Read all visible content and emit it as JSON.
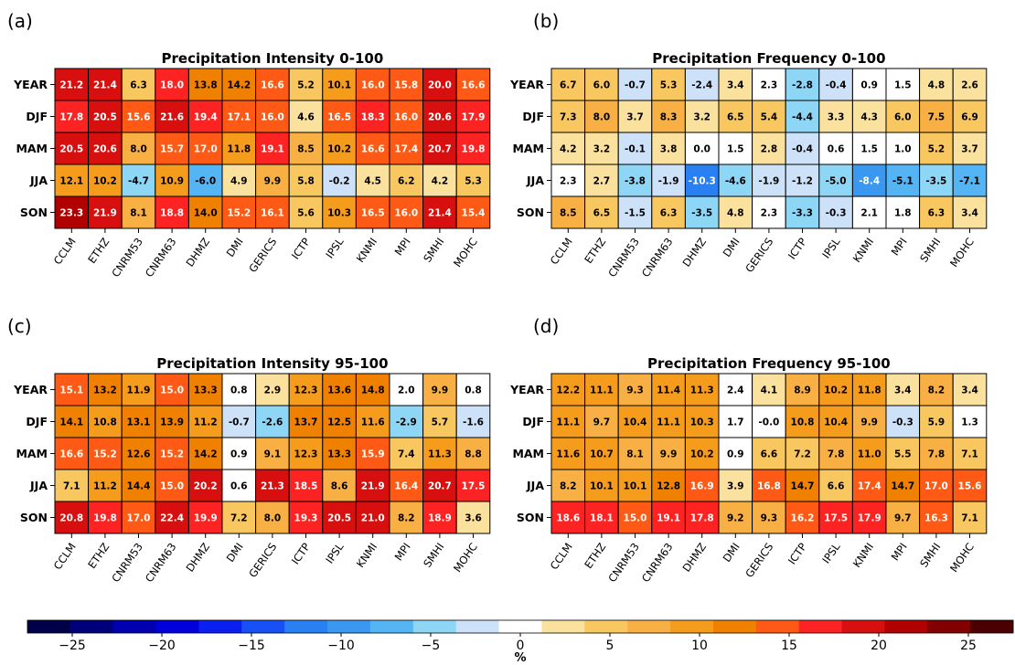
{
  "chart_data": [
    {
      "type": "heatmap",
      "panel_label": "(a)",
      "title": "Precipitation Intensity 0-100",
      "rows": [
        "YEAR",
        "DJF",
        "MAM",
        "JJA",
        "SON"
      ],
      "columns": [
        "CCLM",
        "ETHZ",
        "CNRM53",
        "CNRM63",
        "DHMZ",
        "DMI",
        "GERICS",
        "ICTP",
        "IPSL",
        "KNMI",
        "MPI",
        "SMHI",
        "MOHC"
      ],
      "values": [
        [
          21.2,
          21.4,
          6.3,
          18.0,
          13.8,
          14.2,
          16.6,
          5.2,
          10.1,
          16.0,
          15.8,
          20.0,
          16.6
        ],
        [
          17.8,
          20.5,
          15.6,
          21.6,
          19.4,
          17.1,
          16.0,
          4.6,
          16.5,
          18.3,
          16.0,
          20.6,
          17.9
        ],
        [
          20.5,
          20.6,
          8.0,
          15.7,
          17.0,
          11.8,
          19.1,
          8.5,
          10.2,
          16.6,
          17.4,
          20.7,
          19.8
        ],
        [
          12.1,
          10.2,
          -4.7,
          10.9,
          -6.0,
          4.9,
          9.9,
          5.8,
          -0.2,
          4.5,
          6.2,
          4.2,
          5.3
        ],
        [
          23.3,
          21.9,
          8.1,
          18.8,
          14.0,
          15.2,
          16.1,
          5.6,
          10.3,
          16.5,
          16.0,
          21.4,
          15.4
        ]
      ],
      "value_labels": [
        [
          "21.2",
          "21.4",
          "6.3",
          "18.0",
          "13.8",
          "14.2",
          "16.6",
          "5.2",
          "10.1",
          "16.0",
          "15.8",
          "20.0",
          "16.6"
        ],
        [
          "17.8",
          "20.5",
          "15.6",
          "21.6",
          "19.4",
          "17.1",
          "16.0",
          "4.6",
          "16.5",
          "18.3",
          "16.0",
          "20.6",
          "17.9"
        ],
        [
          "20.5",
          "20.6",
          "8.0",
          "15.7",
          "17.0",
          "11.8",
          "19.1",
          "8.5",
          "10.2",
          "16.6",
          "17.4",
          "20.7",
          "19.8"
        ],
        [
          "12.1",
          "10.2",
          "-4.7",
          "10.9",
          "-6.0",
          "4.9",
          "9.9",
          "5.8",
          "-0.2",
          "4.5",
          "6.2",
          "4.2",
          "5.3"
        ],
        [
          "23.3",
          "21.9",
          "8.1",
          "18.8",
          "14.0",
          "15.2",
          "16.1",
          "5.6",
          "10.3",
          "16.5",
          "16.0",
          "21.4",
          "15.4"
        ]
      ]
    },
    {
      "type": "heatmap",
      "panel_label": "(b)",
      "title": "Precipitation Frequency 0-100",
      "rows": [
        "YEAR",
        "DJF",
        "MAM",
        "JJA",
        "SON"
      ],
      "columns": [
        "CCLM",
        "ETHZ",
        "CNRM53",
        "CNRM63",
        "DHMZ",
        "DMI",
        "GERICS",
        "ICTP",
        "IPSL",
        "KNMI",
        "MPI",
        "SMHI",
        "MOHC"
      ],
      "values": [
        [
          6.7,
          6.0,
          -0.7,
          5.3,
          -2.4,
          3.4,
          2.3,
          -2.8,
          -0.4,
          0.9,
          1.5,
          4.8,
          2.6
        ],
        [
          7.3,
          8.0,
          3.7,
          8.3,
          3.2,
          6.5,
          5.4,
          -4.4,
          3.3,
          4.3,
          6.0,
          7.5,
          6.9
        ],
        [
          4.2,
          3.2,
          -0.1,
          3.8,
          0.0,
          1.5,
          2.8,
          -0.4,
          0.6,
          1.5,
          1.0,
          5.2,
          3.7
        ],
        [
          2.3,
          2.7,
          -3.8,
          -1.9,
          -10.3,
          -4.6,
          -1.9,
          -1.2,
          -5.0,
          -8.4,
          -5.1,
          -3.5,
          -7.1
        ],
        [
          8.5,
          6.5,
          -1.5,
          6.3,
          -3.5,
          4.8,
          2.3,
          -3.3,
          -0.3,
          2.1,
          1.8,
          6.3,
          3.4
        ]
      ],
      "value_labels": [
        [
          "6.7",
          "6.0",
          "-0.7",
          "5.3",
          "-2.4",
          "3.4",
          "2.3",
          "-2.8",
          "-0.4",
          "0.9",
          "1.5",
          "4.8",
          "2.6"
        ],
        [
          "7.3",
          "8.0",
          "3.7",
          "8.3",
          "3.2",
          "6.5",
          "5.4",
          "-4.4",
          "3.3",
          "4.3",
          "6.0",
          "7.5",
          "6.9"
        ],
        [
          "4.2",
          "3.2",
          "-0.1",
          "3.8",
          "0.0",
          "1.5",
          "2.8",
          "-0.4",
          "0.6",
          "1.5",
          "1.0",
          "5.2",
          "3.7"
        ],
        [
          "2.3",
          "2.7",
          "-3.8",
          "-1.9",
          "-10.3",
          "-4.6",
          "-1.9",
          "-1.2",
          "-5.0",
          "-8.4",
          "-5.1",
          "-3.5",
          "-7.1"
        ],
        [
          "8.5",
          "6.5",
          "-1.5",
          "6.3",
          "-3.5",
          "4.8",
          "2.3",
          "-3.3",
          "-0.3",
          "2.1",
          "1.8",
          "6.3",
          "3.4"
        ]
      ]
    },
    {
      "type": "heatmap",
      "panel_label": "(c)",
      "title": "Precipitation Intensity 95-100",
      "rows": [
        "YEAR",
        "DJF",
        "MAM",
        "JJA",
        "SON"
      ],
      "columns": [
        "CCLM",
        "ETHZ",
        "CNRM53",
        "CNRM63",
        "DHMZ",
        "DMI",
        "GERICS",
        "ICTP",
        "IPSL",
        "KNMI",
        "MPI",
        "SMHI",
        "MOHC"
      ],
      "values": [
        [
          15.1,
          13.2,
          11.9,
          15.0,
          13.3,
          0.8,
          2.9,
          12.3,
          13.6,
          14.8,
          2.0,
          9.9,
          0.8
        ],
        [
          14.1,
          10.8,
          13.1,
          13.9,
          11.2,
          -0.7,
          -2.6,
          13.7,
          12.5,
          11.6,
          -2.9,
          5.7,
          -1.6
        ],
        [
          16.6,
          15.2,
          12.6,
          15.2,
          14.2,
          0.9,
          9.1,
          12.3,
          13.3,
          15.9,
          7.4,
          11.3,
          8.8
        ],
        [
          7.1,
          11.2,
          14.4,
          15.0,
          20.2,
          0.6,
          21.3,
          18.5,
          8.6,
          21.9,
          16.4,
          20.7,
          17.5
        ],
        [
          20.8,
          19.8,
          17.0,
          22.4,
          19.9,
          7.2,
          8.0,
          19.3,
          20.5,
          21.0,
          8.2,
          18.9,
          3.6
        ]
      ],
      "value_labels": [
        [
          "15.1",
          "13.2",
          "11.9",
          "15.0",
          "13.3",
          "0.8",
          "2.9",
          "12.3",
          "13.6",
          "14.8",
          "2.0",
          "9.9",
          "0.8"
        ],
        [
          "14.1",
          "10.8",
          "13.1",
          "13.9",
          "11.2",
          "-0.7",
          "-2.6",
          "13.7",
          "12.5",
          "11.6",
          "-2.9",
          "5.7",
          "-1.6"
        ],
        [
          "16.6",
          "15.2",
          "12.6",
          "15.2",
          "14.2",
          "0.9",
          "9.1",
          "12.3",
          "13.3",
          "15.9",
          "7.4",
          "11.3",
          "8.8"
        ],
        [
          "7.1",
          "11.2",
          "14.4",
          "15.0",
          "20.2",
          "0.6",
          "21.3",
          "18.5",
          "8.6",
          "21.9",
          "16.4",
          "20.7",
          "17.5"
        ],
        [
          "20.8",
          "19.8",
          "17.0",
          "22.4",
          "19.9",
          "7.2",
          "8.0",
          "19.3",
          "20.5",
          "21.0",
          "8.2",
          "18.9",
          "3.6"
        ]
      ]
    },
    {
      "type": "heatmap",
      "panel_label": "(d)",
      "title": "Precipitation Frequency 95-100",
      "rows": [
        "YEAR",
        "DJF",
        "MAM",
        "JJA",
        "SON"
      ],
      "columns": [
        "CCLM",
        "ETHZ",
        "CNRM53",
        "CNRM63",
        "DHMZ",
        "DMI",
        "GERICS",
        "ICTP",
        "IPSL",
        "KNMI",
        "MPI",
        "SMHI",
        "MOHC"
      ],
      "values": [
        [
          12.2,
          11.1,
          9.3,
          11.4,
          11.3,
          2.4,
          4.1,
          8.9,
          10.2,
          11.8,
          3.4,
          8.2,
          3.4
        ],
        [
          11.1,
          9.7,
          10.4,
          11.1,
          10.3,
          1.7,
          -0.0,
          10.8,
          10.4,
          9.9,
          -0.3,
          5.9,
          1.3
        ],
        [
          11.6,
          10.7,
          8.1,
          9.9,
          10.2,
          0.9,
          6.6,
          7.2,
          7.8,
          11.0,
          5.5,
          7.8,
          7.1
        ],
        [
          8.2,
          10.1,
          10.1,
          12.8,
          16.9,
          3.9,
          16.8,
          14.7,
          6.6,
          17.4,
          14.7,
          17.0,
          15.6
        ],
        [
          18.6,
          18.1,
          15.0,
          19.1,
          17.8,
          9.2,
          9.3,
          16.2,
          17.5,
          17.9,
          9.7,
          16.3,
          7.1
        ]
      ],
      "value_labels": [
        [
          "12.2",
          "11.1",
          "9.3",
          "11.4",
          "11.3",
          "2.4",
          "4.1",
          "8.9",
          "10.2",
          "11.8",
          "3.4",
          "8.2",
          "3.4"
        ],
        [
          "11.1",
          "9.7",
          "10.4",
          "11.1",
          "10.3",
          "1.7",
          "-0.0",
          "10.8",
          "10.4",
          "9.9",
          "-0.3",
          "5.9",
          "1.3"
        ],
        [
          "11.6",
          "10.7",
          "8.1",
          "9.9",
          "10.2",
          "0.9",
          "6.6",
          "7.2",
          "7.8",
          "11.0",
          "5.5",
          "7.8",
          "7.1"
        ],
        [
          "8.2",
          "10.1",
          "10.1",
          "12.8",
          "16.9",
          "3.9",
          "16.8",
          "14.7",
          "6.6",
          "17.4",
          "14.7",
          "17.0",
          "15.6"
        ],
        [
          "18.6",
          "18.1",
          "15.0",
          "19.1",
          "17.8",
          "9.2",
          "9.3",
          "16.2",
          "17.5",
          "17.9",
          "9.7",
          "16.3",
          "7.1"
        ]
      ]
    }
  ],
  "colorbar": {
    "label": "%",
    "vmin": -27.5,
    "vmax": 27.5,
    "bin_width": 2.5,
    "ticks": [
      -25,
      -20,
      -15,
      -10,
      -5,
      0,
      5,
      10,
      15,
      20,
      25
    ],
    "tick_labels": [
      "−25",
      "−20",
      "−15",
      "−10",
      "−5",
      "0",
      "5",
      "10",
      "15",
      "20",
      "25"
    ],
    "colors": [
      "#00004a",
      "#00007a",
      "#0000b0",
      "#0000dc",
      "#0a20f0",
      "#1750f5",
      "#2980f2",
      "#3a98f0",
      "#55b4f3",
      "#8ed6f6",
      "#cde2f8",
      "#ffffff",
      "#fbe19e",
      "#f9c760",
      "#f8b045",
      "#f69c1c",
      "#f08000",
      "#fe5a16",
      "#fe2323",
      "#d80f0f",
      "#b00000",
      "#820000",
      "#4a0000"
    ]
  }
}
